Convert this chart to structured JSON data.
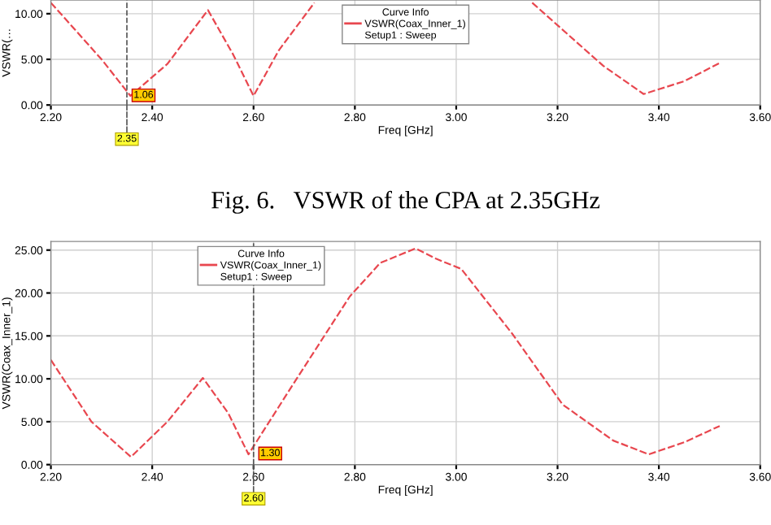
{
  "chart_data": [
    {
      "type": "line",
      "xlabel": "Freq [GHz]",
      "ylabel": "VSWR(…",
      "legend_title": "Curve Info",
      "legend": "top",
      "grid": true,
      "marker": "none",
      "line_style": "dashed",
      "x": [
        2.2,
        2.3,
        2.357,
        2.43,
        2.51,
        2.56,
        2.6,
        2.65,
        2.72,
        2.75,
        3.15,
        3.29,
        3.37,
        3.45,
        3.52
      ],
      "series": [
        {
          "name": "VSWR(Coax_Inner_1)",
          "color": "#e8474f",
          "values": [
            11.2,
            5.0,
            1.0,
            4.5,
            10.4,
            5.5,
            1.0,
            6.0,
            11.2,
            null,
            11.2,
            4.3,
            1.2,
            2.6,
            4.6
          ]
        }
      ],
      "xlim": [
        2.2,
        3.6
      ],
      "xticks": [
        {
          "value": 2.2,
          "label": "2.20"
        },
        {
          "value": 2.4,
          "label": "2.40"
        },
        {
          "value": 2.6,
          "label": "2.60"
        },
        {
          "value": 2.8,
          "label": "2.80"
        },
        {
          "value": 3.0,
          "label": "3.00"
        },
        {
          "value": 3.2,
          "label": "3.20"
        },
        {
          "value": 3.4,
          "label": "3.40"
        },
        {
          "value": 3.6,
          "label": "3.60"
        }
      ],
      "ylim": [
        0,
        11.5
      ],
      "yticks": [
        {
          "value": 0,
          "label": "0.00"
        },
        {
          "value": 5,
          "label": "5.00"
        },
        {
          "value": 10,
          "label": "10.00"
        }
      ],
      "ref_lines": [
        {
          "axis": "x",
          "value": 2.35,
          "label": "2.35",
          "line_style": "dashed",
          "color": "#555555"
        }
      ],
      "annotations": [
        "Setup1 : Sweep",
        {
          "text": "1.06",
          "x": 2.35,
          "y": 1.06
        },
        "Fig. 6.   VSWR of the CPA at 2.35GHz"
      ]
    },
    {
      "type": "line",
      "xlabel": "Freq [GHz]",
      "ylabel": "VSWR(Coax_Inner_1)",
      "legend_title": "Curve Info",
      "legend": "top left",
      "grid": true,
      "marker": "none",
      "line_style": "dashed",
      "x": [
        2.2,
        2.28,
        2.358,
        2.43,
        2.5,
        2.55,
        2.59,
        2.685,
        2.79,
        2.85,
        2.92,
        2.96,
        3.01,
        3.11,
        3.21,
        3.31,
        3.38,
        3.45,
        3.52
      ],
      "series": [
        {
          "name": "VSWR(Coax_Inner_1)",
          "color": "#e8474f",
          "values": [
            12.2,
            5.0,
            0.9,
            5.0,
            10.1,
            6.0,
            1.2,
            10.0,
            19.6,
            23.5,
            25.2,
            24.0,
            22.8,
            15.3,
            7.0,
            2.8,
            1.2,
            2.6,
            4.5
          ]
        }
      ],
      "xlim": [
        2.2,
        3.6
      ],
      "xticks": [
        {
          "value": 2.2,
          "label": "2.20"
        },
        {
          "value": 2.4,
          "label": "2.40"
        },
        {
          "value": 2.6,
          "label": "2.60"
        },
        {
          "value": 2.8,
          "label": "2.80"
        },
        {
          "value": 3.0,
          "label": "3.00"
        },
        {
          "value": 3.2,
          "label": "3.20"
        },
        {
          "value": 3.4,
          "label": "3.40"
        },
        {
          "value": 3.6,
          "label": "3.60"
        }
      ],
      "ylim": [
        0,
        26
      ],
      "yticks": [
        {
          "value": 0,
          "label": "0.00"
        },
        {
          "value": 5,
          "label": "5.00"
        },
        {
          "value": 10,
          "label": "10.00"
        },
        {
          "value": 15,
          "label": "15.00"
        },
        {
          "value": 20,
          "label": "20.00"
        },
        {
          "value": 25,
          "label": "25.00"
        }
      ],
      "ref_lines": [
        {
          "axis": "x",
          "value": 2.6,
          "label": "2.60",
          "line_style": "dashed",
          "color": "#555555"
        }
      ],
      "annotations": [
        "Setup1 : Sweep",
        {
          "text": "1.30",
          "x": 2.6,
          "y": 1.3
        }
      ]
    }
  ]
}
